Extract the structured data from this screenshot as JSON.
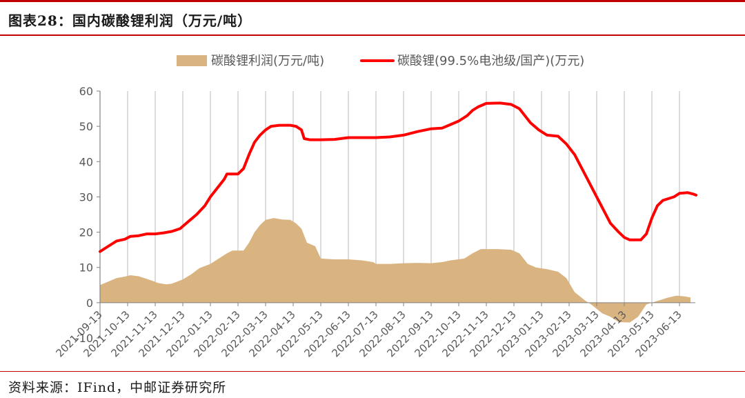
{
  "header": {
    "title": "图表28：国内碳酸锂利润（万元/吨）"
  },
  "footer": {
    "source": "资料来源：IFind，中邮证券研究所"
  },
  "colors": {
    "area": "#d9b380",
    "line": "#ff0000",
    "grid": "#d0d0d0",
    "axis": "#808080",
    "text": "#595959",
    "brand": "#c00000"
  },
  "chart_data": {
    "type": "area+line",
    "ylim": [
      -10,
      60
    ],
    "yticks": [
      -10,
      0,
      10,
      20,
      30,
      40,
      50,
      60
    ],
    "x_tick_labels": [
      "2021-09-13",
      "2021-10-13",
      "2021-11-13",
      "2021-12-13",
      "2022-01-13",
      "2022-02-13",
      "2022-03-13",
      "2022-04-13",
      "2022-05-13",
      "2022-06-13",
      "2022-07-13",
      "2022-08-13",
      "2022-09-13",
      "2022-10-13",
      "2022-11-13",
      "2022-12-13",
      "2023-01-13",
      "2023-02-13",
      "2023-03-13",
      "2023-04-13",
      "2023-05-13",
      "2023-06-13"
    ],
    "legend_position": "top",
    "series": [
      {
        "name": "碳酸锂利润(万元/吨)",
        "type": "area",
        "points": [
          [
            0,
            5
          ],
          [
            0.3,
            6
          ],
          [
            0.6,
            7
          ],
          [
            0.9,
            7.4
          ],
          [
            1.1,
            7.8
          ],
          [
            1.4,
            7.5
          ],
          [
            1.6,
            7
          ],
          [
            1.9,
            6.2
          ],
          [
            2.1,
            5.6
          ],
          [
            2.4,
            5.2
          ],
          [
            2.6,
            5.4
          ],
          [
            2.8,
            6
          ],
          [
            3.0,
            6.6
          ],
          [
            3.3,
            8
          ],
          [
            3.6,
            9.8
          ],
          [
            4.0,
            11
          ],
          [
            4.3,
            12.5
          ],
          [
            4.6,
            14
          ],
          [
            4.8,
            14.8
          ],
          [
            5.2,
            14.8
          ],
          [
            5.4,
            17
          ],
          [
            5.6,
            20
          ],
          [
            5.8,
            22
          ],
          [
            6.0,
            23.5
          ],
          [
            6.3,
            24
          ],
          [
            6.6,
            23.6
          ],
          [
            6.9,
            23.5
          ],
          [
            7.1,
            22.5
          ],
          [
            7.3,
            21
          ],
          [
            7.5,
            17
          ],
          [
            7.8,
            16
          ],
          [
            8.0,
            12.5
          ],
          [
            8.5,
            12.3
          ],
          [
            9.0,
            12.3
          ],
          [
            9.5,
            12
          ],
          [
            9.9,
            11.5
          ],
          [
            10.0,
            11
          ],
          [
            10.5,
            11
          ],
          [
            11.0,
            11.2
          ],
          [
            11.5,
            11.3
          ],
          [
            12.0,
            11.2
          ],
          [
            12.4,
            11.5
          ],
          [
            12.7,
            12
          ],
          [
            13.2,
            12.5
          ],
          [
            13.5,
            14
          ],
          [
            13.8,
            15.2
          ],
          [
            14.4,
            15.2
          ],
          [
            14.9,
            15
          ],
          [
            15.2,
            14
          ],
          [
            15.5,
            11
          ],
          [
            15.8,
            10
          ],
          [
            16.2,
            9.5
          ],
          [
            16.6,
            8.8
          ],
          [
            16.9,
            7
          ],
          [
            17.2,
            3
          ],
          [
            17.6,
            0.5
          ],
          [
            17.8,
            -0.5
          ],
          [
            18.2,
            -3
          ],
          [
            18.5,
            -4
          ],
          [
            18.8,
            -5.5
          ],
          [
            19.2,
            -5.6
          ],
          [
            19.5,
            -4
          ],
          [
            19.8,
            -0.5
          ],
          [
            20.2,
            0.5
          ],
          [
            20.6,
            1.5
          ],
          [
            20.9,
            2
          ],
          [
            21.2,
            1.8
          ],
          [
            21.4,
            1.5
          ]
        ]
      },
      {
        "name": "碳酸锂(99.5%电池级/国产)(万元)",
        "type": "line",
        "points": [
          [
            0,
            14.5
          ],
          [
            0.3,
            16
          ],
          [
            0.6,
            17.5
          ],
          [
            0.9,
            18
          ],
          [
            1.1,
            18.8
          ],
          [
            1.4,
            19
          ],
          [
            1.7,
            19.5
          ],
          [
            2.0,
            19.5
          ],
          [
            2.3,
            19.8
          ],
          [
            2.6,
            20.2
          ],
          [
            2.9,
            21
          ],
          [
            3.2,
            23
          ],
          [
            3.5,
            25
          ],
          [
            3.8,
            27.5
          ],
          [
            4.0,
            30
          ],
          [
            4.3,
            33
          ],
          [
            4.5,
            35
          ],
          [
            4.6,
            36.5
          ],
          [
            5.0,
            36.5
          ],
          [
            5.2,
            38
          ],
          [
            5.4,
            42
          ],
          [
            5.6,
            45.5
          ],
          [
            5.8,
            47.5
          ],
          [
            6.0,
            49
          ],
          [
            6.2,
            50
          ],
          [
            6.5,
            50.3
          ],
          [
            6.9,
            50.3
          ],
          [
            7.1,
            50
          ],
          [
            7.3,
            49
          ],
          [
            7.4,
            46.5
          ],
          [
            7.6,
            46.2
          ],
          [
            8.0,
            46.2
          ],
          [
            8.5,
            46.3
          ],
          [
            9.0,
            46.8
          ],
          [
            9.5,
            46.8
          ],
          [
            10.0,
            46.8
          ],
          [
            10.5,
            47
          ],
          [
            11.0,
            47.5
          ],
          [
            11.5,
            48.5
          ],
          [
            12.0,
            49.3
          ],
          [
            12.4,
            49.5
          ],
          [
            12.7,
            50.5
          ],
          [
            13.0,
            51.5
          ],
          [
            13.3,
            53
          ],
          [
            13.5,
            54.5
          ],
          [
            13.7,
            55.5
          ],
          [
            14.0,
            56.5
          ],
          [
            14.5,
            56.6
          ],
          [
            14.9,
            56.2
          ],
          [
            15.2,
            55
          ],
          [
            15.4,
            53
          ],
          [
            15.6,
            51
          ],
          [
            15.9,
            49
          ],
          [
            16.2,
            47.5
          ],
          [
            16.6,
            47.2
          ],
          [
            16.9,
            45
          ],
          [
            17.2,
            42
          ],
          [
            17.4,
            39
          ],
          [
            17.6,
            36
          ],
          [
            17.8,
            33
          ],
          [
            18.0,
            30
          ],
          [
            18.2,
            27
          ],
          [
            18.5,
            22.5
          ],
          [
            18.8,
            20
          ],
          [
            19.0,
            18.5
          ],
          [
            19.2,
            17.8
          ],
          [
            19.6,
            17.8
          ],
          [
            19.8,
            19.5
          ],
          [
            20.0,
            24
          ],
          [
            20.2,
            27.5
          ],
          [
            20.4,
            29
          ],
          [
            20.8,
            30
          ],
          [
            21.0,
            31
          ],
          [
            21.3,
            31.2
          ],
          [
            21.5,
            30.8
          ],
          [
            21.6,
            30.5
          ]
        ]
      }
    ]
  }
}
